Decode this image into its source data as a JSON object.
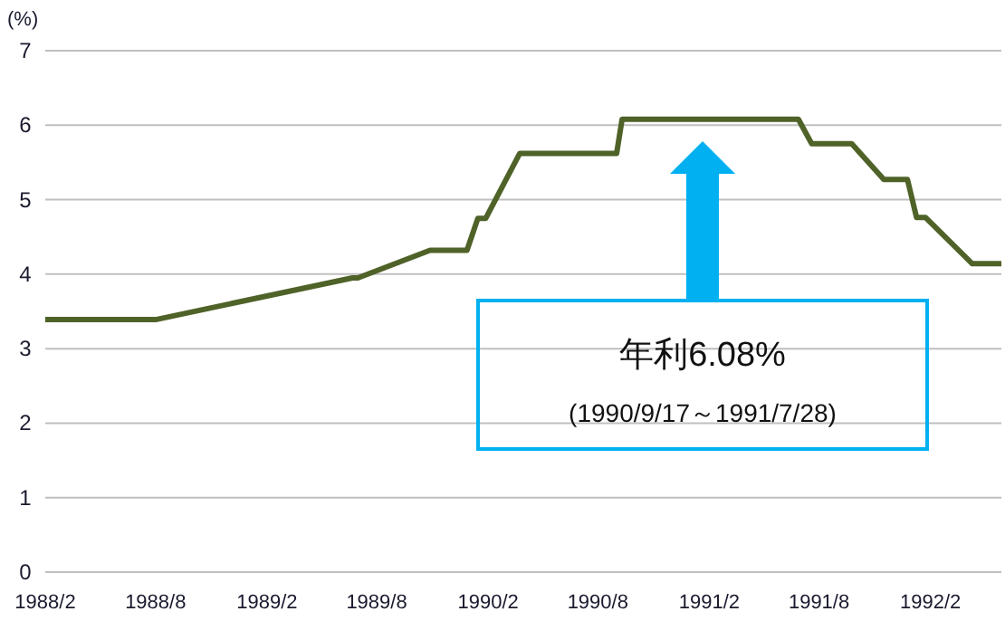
{
  "chart_data": {
    "type": "line",
    "ylabel": "(%)",
    "x": [
      "1988-02-01",
      "1988-08-01",
      "1989-06-22",
      "1989-07-01",
      "1989-10-28",
      "1989-12-28",
      "1990-01-15",
      "1990-01-28",
      "1990-03-25",
      "1990-09-01",
      "1990-09-10",
      "1991-06-28",
      "1991-07-20",
      "1991-09-24",
      "1991-11-16",
      "1991-12-25",
      "1992-01-09",
      "1992-01-24",
      "1992-04-10",
      "1992-05-28"
    ],
    "series": [
      {
        "color": "#4f6228",
        "values": [
          3.39,
          3.39,
          3.95,
          3.95,
          4.32,
          4.32,
          4.75,
          4.75,
          5.62,
          5.62,
          6.08,
          6.08,
          5.75,
          5.75,
          5.27,
          5.27,
          4.76,
          4.76,
          4.14,
          4.14
        ]
      }
    ],
    "xlim": [
      "1988-02-01",
      "1992-05-28"
    ],
    "xticks": [
      {
        "value": "1988-02-01",
        "label": "1988/2"
      },
      {
        "value": "1988-08-01",
        "label": "1988/8"
      },
      {
        "value": "1989-02-01",
        "label": "1989/2"
      },
      {
        "value": "1989-08-01",
        "label": "1989/8"
      },
      {
        "value": "1990-02-01",
        "label": "1990/2"
      },
      {
        "value": "1990-08-01",
        "label": "1990/8"
      },
      {
        "value": "1991-02-01",
        "label": "1991/2"
      },
      {
        "value": "1991-08-01",
        "label": "1991/8"
      },
      {
        "value": "1992-02-01",
        "label": "1992/2"
      }
    ],
    "ylim": [
      0,
      7
    ],
    "yticks": [
      0,
      1,
      2,
      3,
      4,
      5,
      6,
      7
    ],
    "grid": "y",
    "annotations": [
      "年利6.08%\n(1990/9/17～1991/7/28)"
    ]
  }
}
